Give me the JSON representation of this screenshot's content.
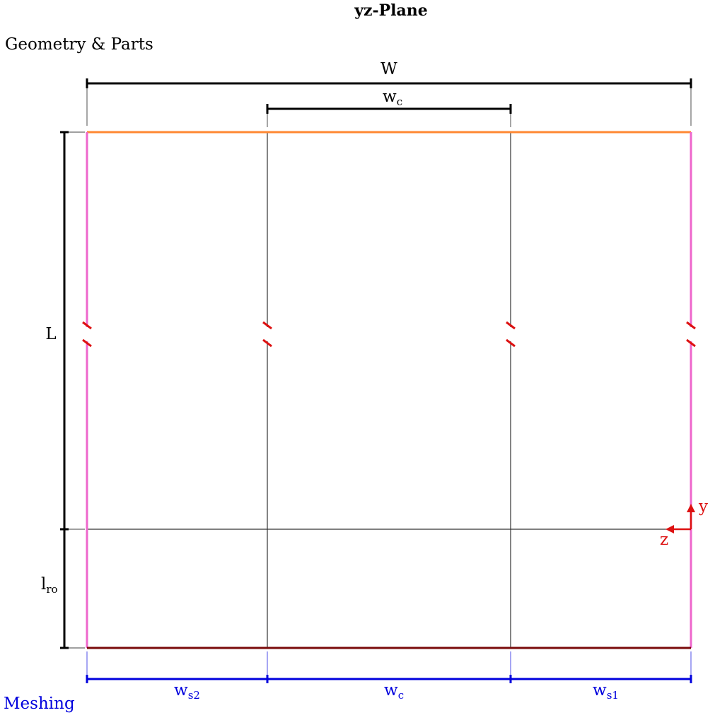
{
  "title": "yz-Plane",
  "section_geometry": "Geometry & Parts",
  "section_meshing": "Meshing",
  "dimensions": {
    "overall_width": "W",
    "core_width": {
      "main": "w",
      "sub": "c"
    },
    "length": "L",
    "runout_length": {
      "main": "l",
      "sub": "ro"
    }
  },
  "meshing_labels": [
    {
      "main": "w",
      "sub": "s2"
    },
    {
      "main": "w",
      "sub": "c"
    },
    {
      "main": "w",
      "sub": "s1"
    }
  ],
  "axes": {
    "y": "y",
    "z": "z"
  },
  "colors": {
    "top_edge": "#ff8833",
    "side_edges": "#ee66cc",
    "bottom_edge": "#7a0a0a",
    "interior_lines": "#333333",
    "meshing": "#0000dd",
    "axes": "#dd1111",
    "break_marks": "#dd1111"
  }
}
